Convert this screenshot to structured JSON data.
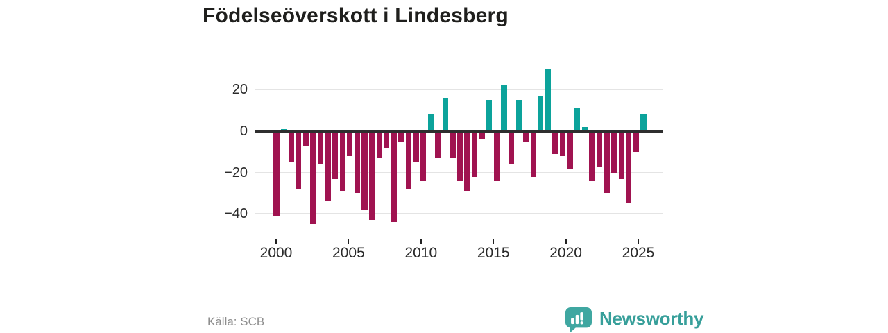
{
  "title": "Födelseöverskott i Lindesberg",
  "source": "Källa: SCB",
  "brand": {
    "name": "Newsworthy",
    "icon": "newsworthy-speech-bubble-chart-icon",
    "color": "#379f9a"
  },
  "colors": {
    "positive": "#0ca39b",
    "negative": "#a01350",
    "grid": "#e4e4e4",
    "zero_line": "#2e2e2e",
    "axis_text": "#2b2b2b",
    "title_text": "#1f1f1d",
    "source_text": "#8d8d8d"
  },
  "chart_data": {
    "type": "bar",
    "title": "Födelseöverskott i Lindesberg",
    "x": [
      "2000 H1",
      "2000 H2",
      "2001 H1",
      "2001 H2",
      "2002 H1",
      "2002 H2",
      "2003 H1",
      "2003 H2",
      "2004 H1",
      "2004 H2",
      "2005 H1",
      "2005 H2",
      "2006 H1",
      "2006 H2",
      "2007 H1",
      "2007 H2",
      "2008 H1",
      "2008 H2",
      "2009 H1",
      "2009 H2",
      "2010 H1",
      "2010 H2",
      "2011 H1",
      "2011 H2",
      "2012 H1",
      "2012 H2",
      "2013 H1",
      "2013 H2",
      "2014 H1",
      "2014 H2",
      "2015 H1",
      "2015 H2",
      "2016 H1",
      "2016 H2",
      "2017 H1",
      "2017 H2",
      "2018 H1",
      "2018 H2",
      "2019 H1",
      "2019 H2",
      "2020 H1",
      "2020 H2",
      "2021 H1",
      "2021 H2",
      "2022 H1",
      "2022 H2",
      "2023 H1",
      "2023 H2",
      "2024 H1",
      "2024 H2",
      "2025 H1"
    ],
    "values": [
      -41,
      1,
      -15,
      -28,
      -7,
      -45,
      -16,
      -34,
      -23,
      -29,
      -12,
      -30,
      -38,
      -43,
      -13,
      -8,
      -44,
      -5,
      -28,
      -15,
      -24,
      8,
      -13,
      16,
      -13,
      -24,
      -29,
      -22,
      -4,
      15,
      -24,
      22,
      -16,
      15,
      -5,
      -22,
      17,
      30,
      -11,
      -12,
      -18,
      11,
      2,
      -24,
      -17,
      -30,
      -20,
      -23,
      -35,
      -10,
      8
    ],
    "xticks": [
      "2000",
      "2005",
      "2010",
      "2015",
      "2020",
      "2025"
    ],
    "yticks": [
      "20",
      "0",
      "−20",
      "−40"
    ],
    "ytick_values": [
      20,
      0,
      -20,
      -40
    ],
    "ylim": [
      -48,
      33
    ],
    "grid": "horizontal",
    "legend": "none",
    "positive_color": "#0ca39b",
    "negative_color": "#a01350"
  }
}
